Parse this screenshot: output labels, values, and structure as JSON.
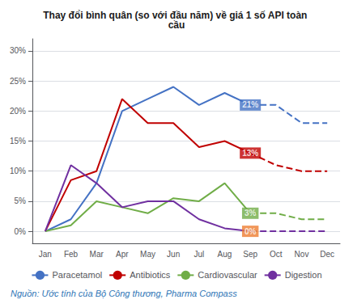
{
  "chart_data": {
    "type": "line",
    "title": "Thay đổi bình quân (so với đầu năm) về giá 1 số API toàn cầu",
    "source": "Nguồn: Ước tính của Bộ Công thương, Pharma Compass",
    "categories": [
      "Jan",
      "Feb",
      "Mar",
      "Apr",
      "May",
      "Jun",
      "Jul",
      "Aug",
      "Sep",
      "Oct",
      "Nov",
      "Dec"
    ],
    "series": [
      {
        "name": "Paracetamol",
        "color": "#4472C4",
        "line_style": "solid",
        "values": [
          0,
          2,
          8,
          20,
          22,
          24,
          21,
          23,
          21,
          null,
          null,
          null
        ]
      },
      {
        "name": "Antibiotics",
        "color": "#C00000",
        "line_style": "solid",
        "values": [
          0,
          8.5,
          10,
          22,
          18,
          18,
          14,
          15,
          13,
          null,
          null,
          null
        ]
      },
      {
        "name": "Cardiovascular",
        "color": "#70AD47",
        "line_style": "solid",
        "values": [
          0,
          1,
          5,
          4,
          3,
          5.5,
          5,
          8,
          3,
          null,
          null,
          null
        ]
      },
      {
        "name": "Digestion",
        "color": "#7030A0",
        "line_style": "solid",
        "values": [
          0,
          11,
          8,
          4,
          5,
          5,
          2,
          0.5,
          0,
          null,
          null,
          null
        ]
      },
      {
        "name": "Paracetamol",
        "color": "#4472C4",
        "line_style": "dashed",
        "values": [
          null,
          null,
          null,
          null,
          null,
          null,
          null,
          null,
          21,
          21,
          18,
          18
        ]
      },
      {
        "name": "Antibiotics",
        "color": "#C00000",
        "line_style": "dashed",
        "values": [
          null,
          null,
          null,
          null,
          null,
          null,
          null,
          null,
          13,
          11,
          10,
          10
        ]
      },
      {
        "name": "Cardiovascular",
        "color": "#70AD47",
        "line_style": "dashed",
        "values": [
          null,
          null,
          null,
          null,
          null,
          null,
          null,
          null,
          3,
          3,
          2,
          2
        ]
      },
      {
        "name": "Digestion",
        "color": "#7030A0",
        "line_style": "dashed",
        "values": [
          null,
          null,
          null,
          null,
          null,
          null,
          null,
          null,
          0,
          0,
          0,
          0
        ]
      }
    ],
    "annotations": [
      {
        "text": "21%",
        "x": "Sep",
        "y": 21,
        "color": "#4472C4"
      },
      {
        "text": "13%",
        "x": "Sep",
        "y": 13,
        "color": "#C00000"
      },
      {
        "text": "3%",
        "x": "Sep",
        "y": 3,
        "color": "#70AD47"
      },
      {
        "text": "0%",
        "x": "Sep",
        "y": 0,
        "color": "#ED7D31"
      }
    ],
    "ylim": [
      -2,
      32
    ],
    "yticks": [
      {
        "value": 0,
        "label": "0%"
      },
      {
        "value": 5,
        "label": "5%"
      },
      {
        "value": 10,
        "label": "10%"
      },
      {
        "value": 15,
        "label": "15%"
      },
      {
        "value": 20,
        "label": "20%"
      },
      {
        "value": 25,
        "label": "25%"
      },
      {
        "value": 30,
        "label": "30%"
      }
    ],
    "grid": true,
    "legend": "bottom"
  }
}
